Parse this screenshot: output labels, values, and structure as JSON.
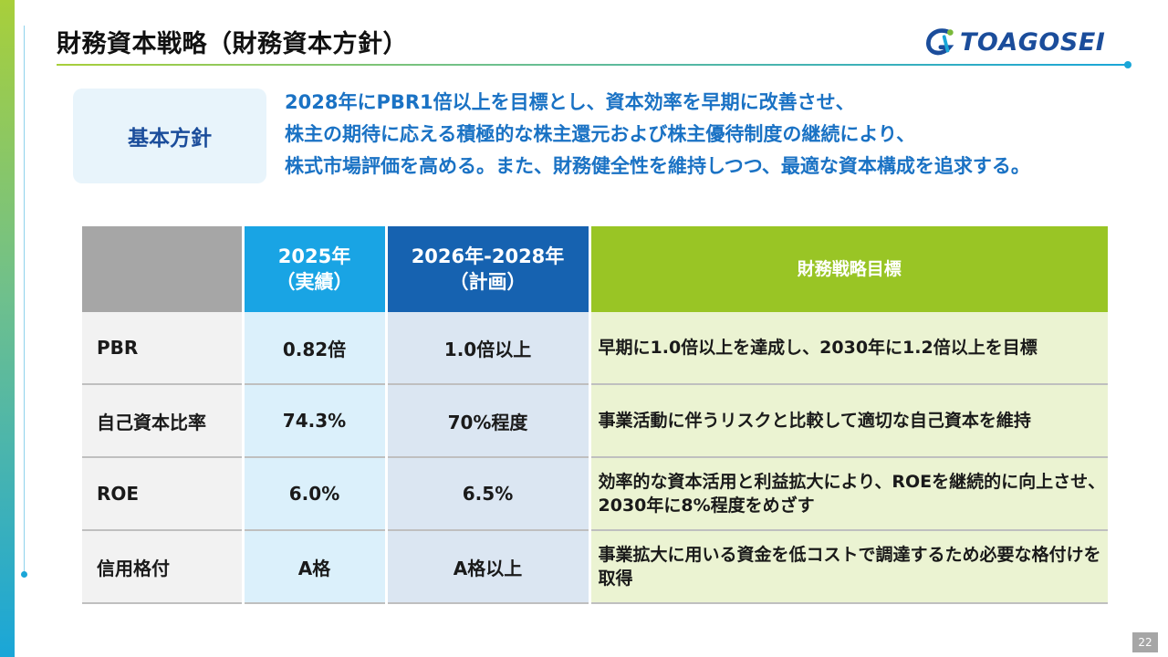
{
  "header": {
    "title": "財務資本戦略（財務資本方針）",
    "logo_text": "TOAGOSEI"
  },
  "policy": {
    "label": "基本方針",
    "lines": [
      "2028年にPBR1倍以上を目標とし、資本効率を早期に改善させ、",
      "株主の期待に応える積極的な株主還元および株主優待制度の継続により、",
      "株式市場評価を高める。また、財務健全性を維持しつつ、最適な資本構成を追求する。"
    ]
  },
  "table": {
    "headers": [
      {
        "line1": "",
        "line2": ""
      },
      {
        "line1": "2025年",
        "line2": "（実績）"
      },
      {
        "line1": "2026年-2028年",
        "line2": "（計画）"
      },
      {
        "line1": "財務戦略目標",
        "line2": ""
      }
    ],
    "rows": [
      {
        "metric": "PBR",
        "actual": "0.82倍",
        "plan": "1.0倍以上",
        "goal": "早期に1.0倍以上を達成し、2030年に1.2倍以上を目標"
      },
      {
        "metric": "自己資本比率",
        "actual": "74.3%",
        "plan": "70%程度",
        "goal": "事業活動に伴うリスクと比較して適切な自己資本を維持"
      },
      {
        "metric": "ROE",
        "actual": "6.0%",
        "plan": "6.5%",
        "goal": "効率的な資本活用と利益拡大により、ROEを継続的に向上させ、2030年に8%程度をめざす"
      },
      {
        "metric": "信用格付",
        "actual": "A格",
        "plan": "A格以上",
        "goal": "事業拡大に用いる資金を低コストで調達するため必要な格付けを取得"
      }
    ]
  },
  "footer": {
    "page_number": "22"
  },
  "colors": {
    "brand_blue": "#1b4d9b",
    "accent_blue": "#1a72c4",
    "header_light_blue": "#19a4e4",
    "header_dark_blue": "#1662b0",
    "header_green": "#99c525",
    "header_gray": "#a6a6a6"
  }
}
